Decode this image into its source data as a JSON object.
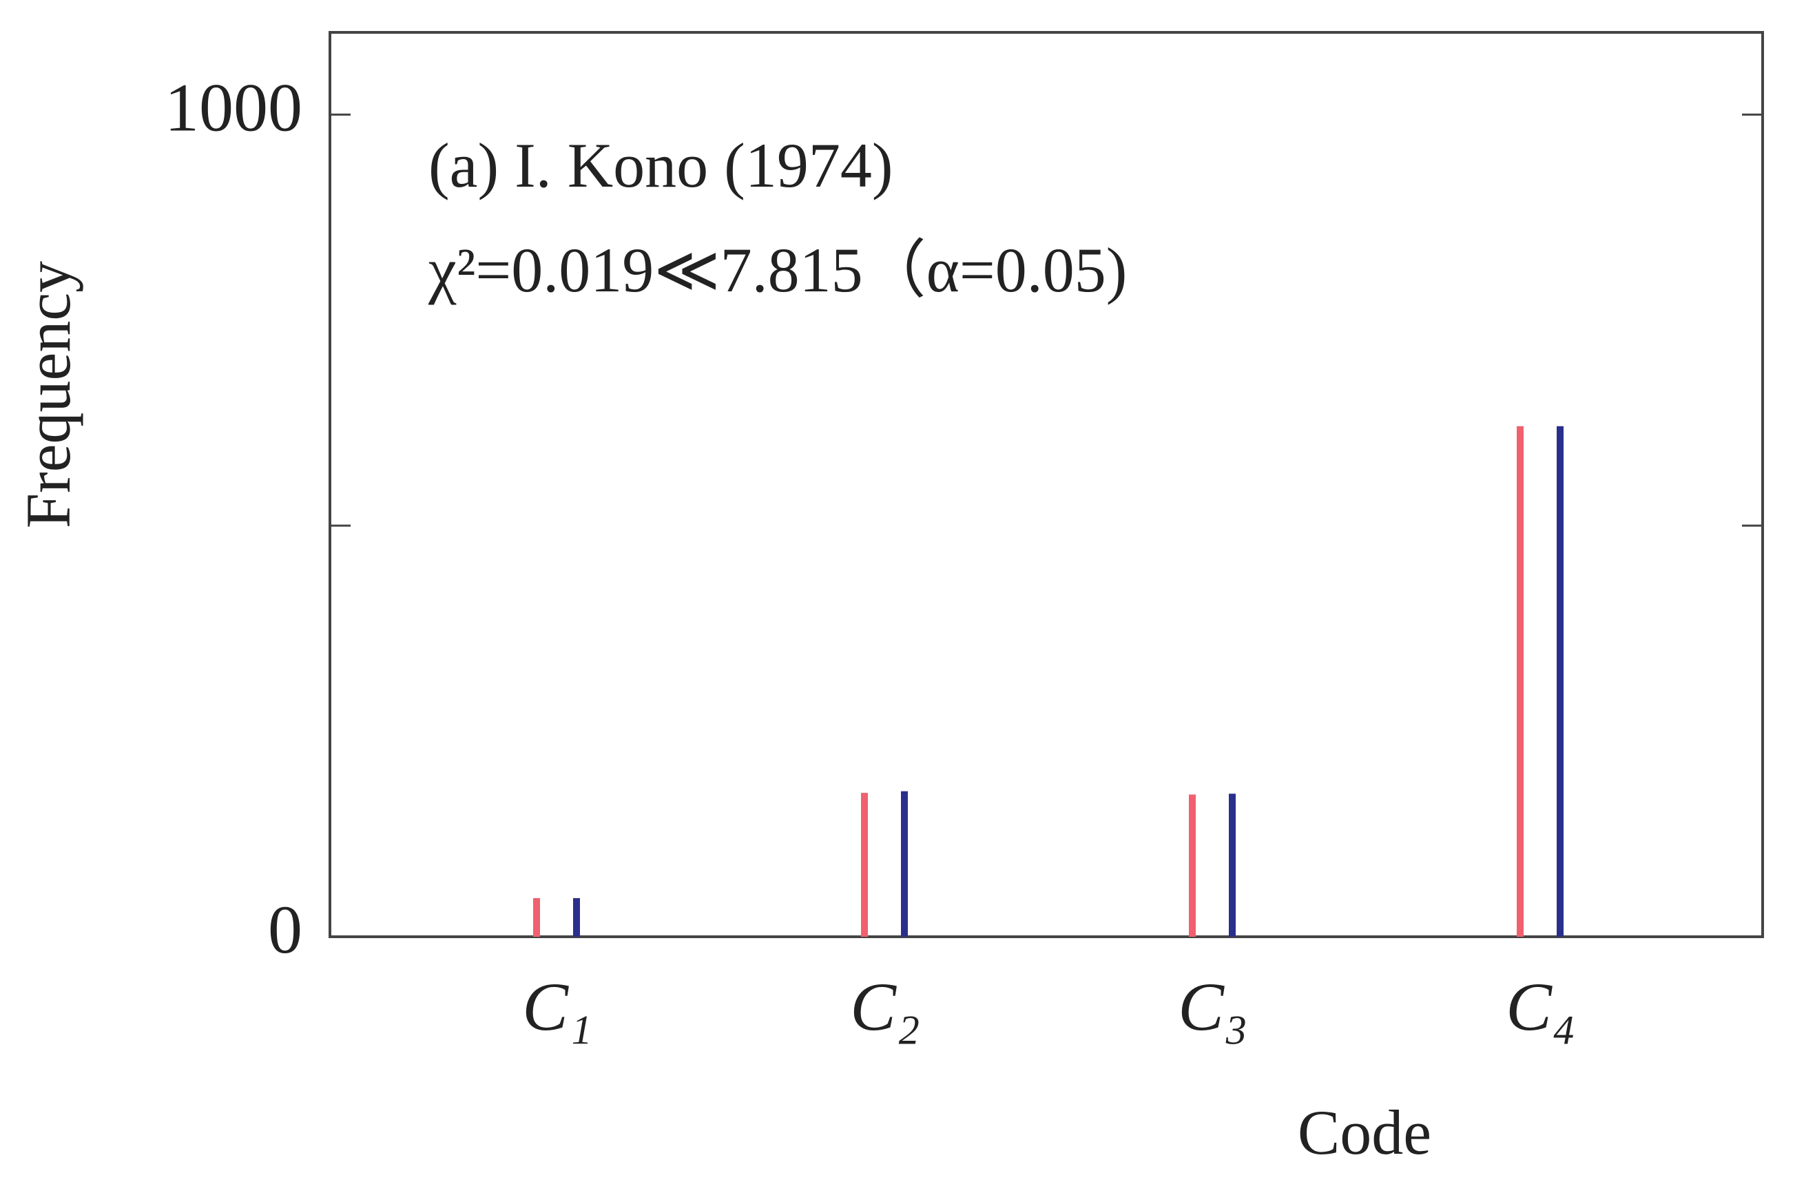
{
  "chart_data": {
    "type": "bar",
    "annotations": [
      "(a) I. Kono (1974)",
      "χ²=0.019≪7.815（α=0.05)"
    ],
    "x_label": "Code",
    "y_label": "Frequency",
    "categories": [
      "C₁",
      "C₂",
      "C₃",
      "C₄"
    ],
    "series": [
      {
        "color": "#f0606e",
        "values": [
          47,
          175,
          173,
          621
        ]
      },
      {
        "color": "#2a2f8c",
        "values": [
          47,
          177,
          174,
          621
        ]
      }
    ],
    "ylim": [
      0,
      1100
    ],
    "yticks": [
      0,
      1000
    ],
    "minor_yticks": [
      500
    ]
  }
}
